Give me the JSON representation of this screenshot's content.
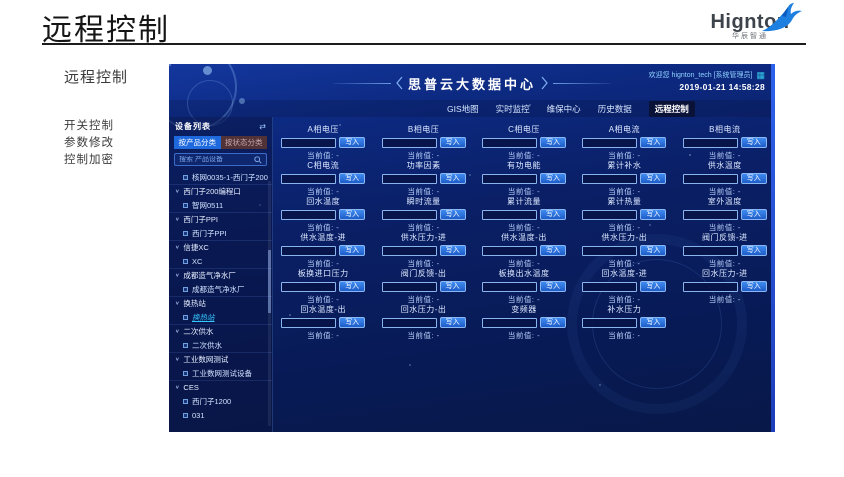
{
  "slide": {
    "title": "远程控制",
    "side_heading": "远程控制",
    "side_items": [
      "开关控制",
      "参数修改",
      "控制加密"
    ],
    "logo": {
      "text": "Hignton",
      "subtext": "华辰智通"
    }
  },
  "dashboard": {
    "title": "思普云大数据中心",
    "welcome": "欢迎您  hignton_tech [系统管理员]",
    "datetime": "2019-01-21 14:58:28",
    "nav": [
      {
        "label": "GIS地图",
        "active": false
      },
      {
        "label": "实时监控",
        "active": false
      },
      {
        "label": "维保中心",
        "active": false
      },
      {
        "label": "历史数据",
        "active": false
      },
      {
        "label": "远程控制",
        "active": true
      }
    ],
    "sidebar": {
      "title": "设备列表",
      "tabs": [
        {
          "label": "按产品分类",
          "active": true
        },
        {
          "label": "按状态分类",
          "active": false
        }
      ],
      "search_placeholder": "搜索 产品设备",
      "tree": [
        {
          "kind": "child",
          "label": "核网0035-1-西门子200"
        },
        {
          "kind": "group",
          "label": "西门子200编程口"
        },
        {
          "kind": "child",
          "label": "智网0511"
        },
        {
          "kind": "group",
          "label": "西门子PPI"
        },
        {
          "kind": "child",
          "label": "西门子PPI"
        },
        {
          "kind": "group",
          "label": "信捷XC"
        },
        {
          "kind": "child",
          "label": "XC"
        },
        {
          "kind": "group",
          "label": "成都造气净水厂"
        },
        {
          "kind": "child",
          "label": "成都造气净水厂"
        },
        {
          "kind": "group",
          "label": "换热站"
        },
        {
          "kind": "child",
          "label": "换热站",
          "selected": true
        },
        {
          "kind": "group",
          "label": "二次供水"
        },
        {
          "kind": "child",
          "label": "二次供水"
        },
        {
          "kind": "group",
          "label": "工业数网测试"
        },
        {
          "kind": "child",
          "label": "工业数网测试设备"
        },
        {
          "kind": "group",
          "label": "CES"
        },
        {
          "kind": "child",
          "label": "西门子1200"
        },
        {
          "kind": "child",
          "label": "031"
        }
      ]
    },
    "controls": {
      "write_label": "写入",
      "current_label": "当前值:",
      "current_value": "-",
      "cards": [
        "A相电压",
        "B相电压",
        "C相电压",
        "A相电流",
        "B相电流",
        "C相电流",
        "功率因素",
        "有功电能",
        "累计补水",
        "供水温度",
        "回水温度",
        "瞬时流量",
        "累计流量",
        "累计热量",
        "室外温度",
        "供水温度-进",
        "供水压力-进",
        "供水温度-出",
        "供水压力-出",
        "阀门反馈-进",
        "板换进口压力",
        "阀门反馈-出",
        "板换出水温度",
        "回水温度-进",
        "回水压力-进",
        "回水温度-出",
        "回水压力-出",
        "变频器",
        "补水压力"
      ]
    },
    "colors": {
      "accent": "#1e69dd",
      "active_nav_bg": "#0a1238",
      "status_tab_bg": "#513337"
    }
  }
}
